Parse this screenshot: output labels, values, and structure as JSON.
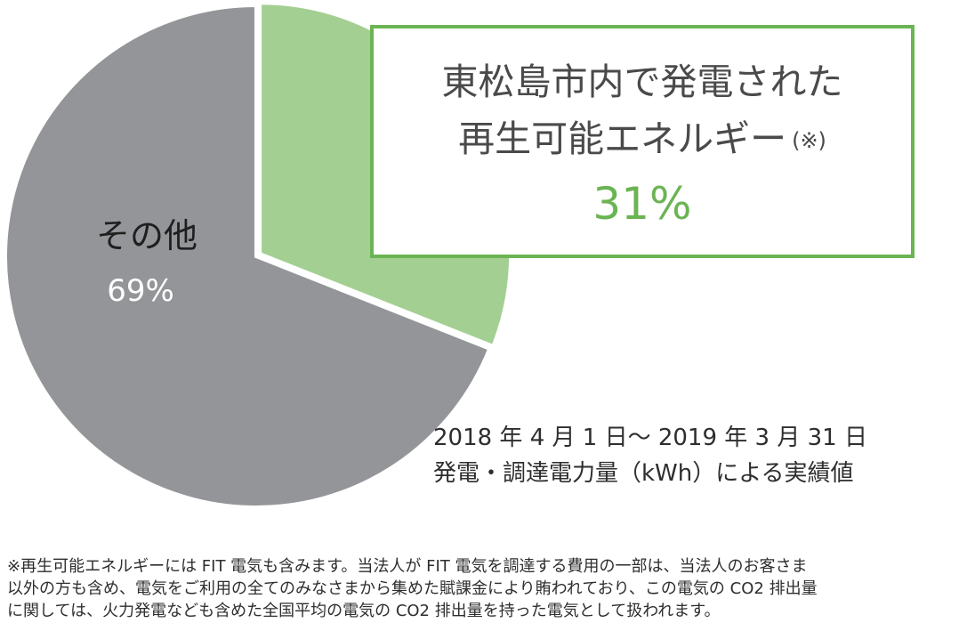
{
  "chart_data": {
    "type": "pie",
    "start_angle_deg": 0,
    "direction": "clockwise",
    "slices": [
      {
        "name": "東松島市内で発電された再生可能エネルギー",
        "value": 31,
        "label": "31%",
        "color": "#a3cf92"
      },
      {
        "name": "その他",
        "value": 69,
        "label": "69%",
        "color": "#939598"
      }
    ],
    "other_label": "その他",
    "other_value_label": "69%",
    "callout": {
      "line1": "東松島市内で発電された",
      "line2": "再生可能エネルギー",
      "note": "(※)",
      "value": "31%",
      "border_color": "#6bb453",
      "value_color": "#6bb453"
    },
    "period": {
      "line1": "2018 年 4 月 1 日～ 2019 年 3 月 31 日",
      "line2": "発電・調達電力量（kWh）による実績値"
    }
  },
  "footnote": {
    "line1": "※再生可能エネルギーには FIT 電気も含みます。当法人が FIT 電気を調達する費用の一部は、当法人のお客さま",
    "line2": "以外の方も含め、電気をご利用の全てのみなさまから集めた賦課金により賄われており、この電気の CO2 排出量",
    "line3": "に関しては、火力発電なども含めた全国平均の電気の CO2 排出量を持った電気として扱われます。"
  }
}
